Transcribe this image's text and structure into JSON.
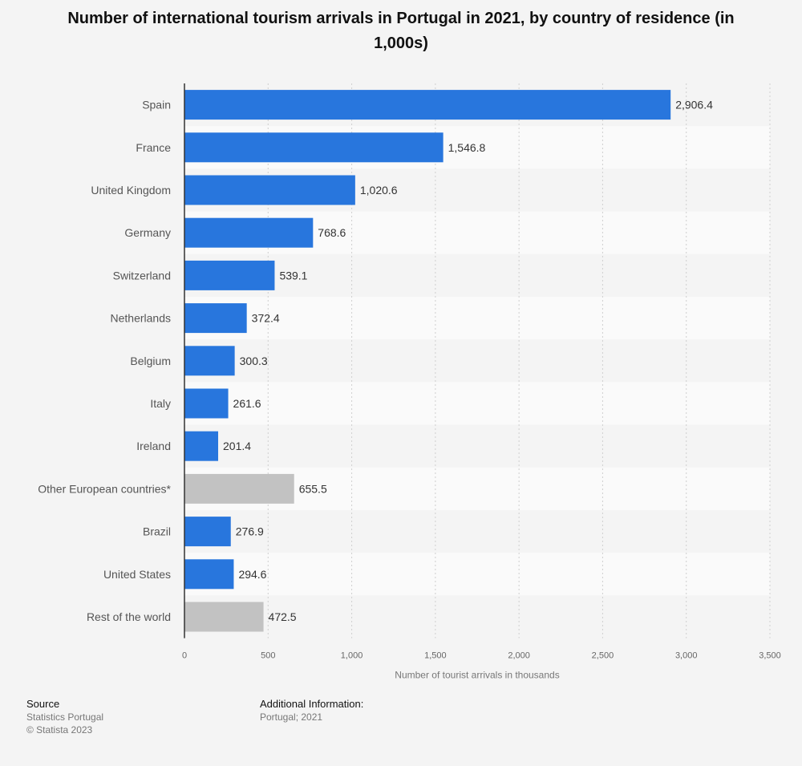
{
  "chart_data": {
    "type": "bar",
    "orientation": "horizontal",
    "title": "Number of international tourism arrivals in Portugal in 2021, by country of residence (in 1,000s)",
    "categories": [
      "Spain",
      "France",
      "United Kingdom",
      "Germany",
      "Switzerland",
      "Netherlands",
      "Belgium",
      "Italy",
      "Ireland",
      "Other European countries*",
      "Brazil",
      "United States",
      "Rest of the world"
    ],
    "values": [
      2906.4,
      1546.8,
      1020.6,
      768.6,
      539.1,
      372.4,
      300.3,
      261.6,
      201.4,
      655.5,
      276.9,
      294.6,
      472.5
    ],
    "value_labels": [
      "2,906.4",
      "1,546.8",
      "1,020.6",
      "768.6",
      "539.1",
      "372.4",
      "300.3",
      "261.6",
      "201.4",
      "655.5",
      "276.9",
      "294.6",
      "472.5"
    ],
    "bar_colors": [
      "#2876dd",
      "#2876dd",
      "#2876dd",
      "#2876dd",
      "#2876dd",
      "#2876dd",
      "#2876dd",
      "#2876dd",
      "#2876dd",
      "#c2c2c2",
      "#2876dd",
      "#2876dd",
      "#c2c2c2"
    ],
    "xlim": [
      0,
      3500
    ],
    "ticks": [
      0,
      500,
      1000,
      1500,
      2000,
      2500,
      3000,
      3500
    ],
    "tick_labels": [
      "0",
      "500",
      "1,000",
      "1,500",
      "2,000",
      "2,500",
      "3,000",
      "3,500"
    ],
    "xlabel": "Number of tourist arrivals in thousands",
    "ylabel": "",
    "grid": true
  },
  "footer": {
    "source_heading": "Source",
    "source_lines": [
      "Statistics Portugal",
      "© Statista 2023"
    ],
    "info_heading": "Additional Information:",
    "info_lines": [
      "Portugal; 2021"
    ]
  }
}
